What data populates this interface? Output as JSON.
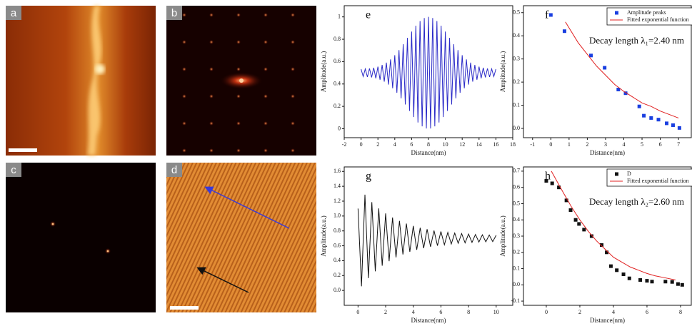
{
  "image_panels": [
    "a",
    "b",
    "c",
    "d"
  ],
  "chart_data": [
    {
      "type": "line",
      "panel_label": "e",
      "x_label": "Distance(nm)",
      "y_label": "Amplitude(a.u.)",
      "x": [
        0,
        0.25,
        0.5,
        0.75,
        1,
        1.25,
        1.5,
        1.75,
        2,
        2.25,
        2.5,
        2.75,
        3,
        3.25,
        3.5,
        3.75,
        4,
        4.25,
        4.5,
        4.75,
        5,
        5.25,
        5.5,
        5.75,
        6,
        6.25,
        6.5,
        6.75,
        7,
        7.25,
        7.5,
        7.75,
        8,
        8.25,
        8.5,
        8.75,
        9,
        9.25,
        9.5,
        9.75,
        10,
        10.25,
        10.5,
        10.75,
        11,
        11.25,
        11.5,
        11.75,
        12,
        12.25,
        12.5,
        12.75,
        13,
        13.25,
        13.5,
        13.75,
        14,
        14.25,
        14.5,
        14.75,
        15,
        15.25,
        15.5,
        15.75,
        16
      ],
      "series": [
        {
          "color": "#2b2bc8",
          "values": [
            0.533,
            0.467,
            0.535,
            0.463,
            0.539,
            0.459,
            0.545,
            0.451,
            0.555,
            0.438,
            0.57,
            0.421,
            0.591,
            0.395,
            0.62,
            0.362,
            0.657,
            0.321,
            0.703,
            0.272,
            0.756,
            0.217,
            0.812,
            0.159,
            0.869,
            0.104,
            0.921,
            0.056,
            0.963,
            0.021,
            0.99,
            0.002,
            1.0,
            0.002,
            0.99,
            0.021,
            0.963,
            0.056,
            0.921,
            0.104,
            0.869,
            0.159,
            0.812,
            0.217,
            0.756,
            0.272,
            0.703,
            0.321,
            0.657,
            0.362,
            0.62,
            0.395,
            0.591,
            0.421,
            0.57,
            0.438,
            0.555,
            0.451,
            0.545,
            0.459,
            0.539,
            0.463,
            0.535,
            0.467,
            0.533
          ]
        }
      ],
      "xlim": [
        -2,
        18
      ],
      "xticks": [
        -2,
        0,
        2,
        4,
        6,
        8,
        10,
        12,
        14,
        16,
        18
      ],
      "ylim": [
        -0.08,
        1.1
      ],
      "yticks": [
        0,
        0.2,
        0.4,
        0.6,
        0.8,
        1
      ]
    },
    {
      "type": "scatter",
      "panel_label": "f",
      "x_label": "Distance(nm)",
      "y_label": "Amplitude(a.u.)",
      "annotation": "Decay length λ₁=2.40 nm",
      "series": [
        {
          "name": "Amplitude peaks",
          "mode": "markers",
          "color": "#1a3fe0",
          "x": [
            0,
            0.75,
            2.2,
            2.95,
            3.7,
            4.1,
            4.85,
            5.1,
            5.5,
            5.9,
            6.35,
            6.7,
            7.05
          ],
          "values": [
            0.49,
            0.42,
            0.315,
            0.262,
            0.168,
            0.152,
            0.095,
            0.055,
            0.045,
            0.038,
            0.022,
            0.014,
            0.002
          ]
        },
        {
          "name": "Fitted exponential function",
          "mode": "line",
          "color": "#e02020",
          "x": [
            0.8,
            1.5,
            2,
            2.5,
            3,
            3.5,
            4,
            4.5,
            5,
            5.5,
            6,
            6.5,
            7
          ],
          "values": [
            0.46,
            0.37,
            0.32,
            0.27,
            0.23,
            0.19,
            0.16,
            0.135,
            0.11,
            0.095,
            0.075,
            0.06,
            0.045
          ]
        }
      ],
      "xlim": [
        -1.5,
        7.7
      ],
      "xticks": [
        -1,
        0,
        1,
        2,
        3,
        4,
        5,
        6,
        7
      ],
      "ylim": [
        -0.04,
        0.53
      ],
      "yticks": [
        {
          "value": 0,
          "label": "0.0"
        },
        0.1,
        0.2,
        0.3,
        0.4,
        0.5
      ]
    },
    {
      "type": "line",
      "panel_label": "g",
      "x_label": "Distance(nm)",
      "y_label": "Amplitude(a.u.)",
      "x": [
        0,
        0.25,
        0.5,
        0.75,
        1,
        1.25,
        1.5,
        1.75,
        2,
        2.25,
        2.5,
        2.75,
        3,
        3.25,
        3.5,
        3.75,
        4,
        4.25,
        4.5,
        4.75,
        5,
        5.25,
        5.5,
        5.75,
        6,
        6.25,
        6.5,
        6.75,
        7,
        7.25,
        7.5,
        7.75,
        8,
        8.25,
        8.5,
        8.75,
        9,
        9.25,
        9.5,
        9.75,
        10
      ],
      "series": [
        {
          "color": "#111111",
          "values": [
            1.1,
            0.055,
            1.287,
            0.166,
            1.186,
            0.257,
            1.103,
            0.332,
            1.035,
            0.393,
            0.98,
            0.444,
            0.935,
            0.484,
            0.898,
            0.518,
            0.867,
            0.546,
            0.842,
            0.568,
            0.822,
            0.587,
            0.805,
            0.602,
            0.792,
            0.614,
            0.78,
            0.624,
            0.771,
            0.633,
            0.764,
            0.639,
            0.758,
            0.645,
            0.752,
            0.65,
            0.748,
            0.653,
            0.745,
            0.656,
            0.742
          ]
        }
      ],
      "xlim": [
        -1,
        11.2
      ],
      "xticks": [
        0,
        2,
        4,
        6,
        8,
        10
      ],
      "ylim": [
        -0.2,
        1.66
      ],
      "yticks": [
        {
          "value": 0,
          "label": "0.0"
        },
        0.2,
        0.4,
        0.6,
        0.8,
        {
          "value": 1,
          "label": "1.0"
        },
        1.2,
        1.4,
        1.6
      ]
    },
    {
      "type": "scatter",
      "panel_label": "h",
      "x_label": "Distance(nm)",
      "y_label": "Amplitude(a.u.)",
      "annotation": "Decay length λ₂=2.60 nm",
      "series": [
        {
          "name": "D",
          "mode": "markers",
          "color": "#111111",
          "x": [
            0,
            0.35,
            0.75,
            1.2,
            1.45,
            1.75,
            1.95,
            2.25,
            2.7,
            3.3,
            3.6,
            3.85,
            4.2,
            4.6,
            4.95,
            5.6,
            6,
            6.3,
            7.1,
            7.5,
            7.85,
            8.1
          ],
          "values": [
            0.64,
            0.625,
            0.6,
            0.52,
            0.46,
            0.4,
            0.375,
            0.34,
            0.3,
            0.245,
            0.2,
            0.115,
            0.09,
            0.065,
            0.04,
            0.03,
            0.025,
            0.02,
            0.02,
            0.018,
            0.005,
            0
          ]
        },
        {
          "name": "Fitted exponential function",
          "mode": "line",
          "color": "#e02020",
          "x": [
            0.3,
            1,
            1.5,
            2,
            2.5,
            3,
            3.5,
            4,
            4.5,
            5,
            5.5,
            6,
            6.5,
            7,
            7.7
          ],
          "values": [
            0.7,
            0.57,
            0.48,
            0.4,
            0.33,
            0.27,
            0.22,
            0.17,
            0.14,
            0.11,
            0.09,
            0.07,
            0.055,
            0.045,
            0.03
          ]
        }
      ],
      "xlim": [
        -1.36,
        8.64
      ],
      "xticks": [
        0,
        2,
        4,
        6,
        8
      ],
      "ylim": [
        -0.126,
        0.726
      ],
      "yticks": [
        -0.1,
        {
          "value": 0,
          "label": "0.0"
        },
        0.1,
        0.2,
        0.3,
        0.4,
        0.5,
        0.6,
        0.7
      ]
    }
  ]
}
